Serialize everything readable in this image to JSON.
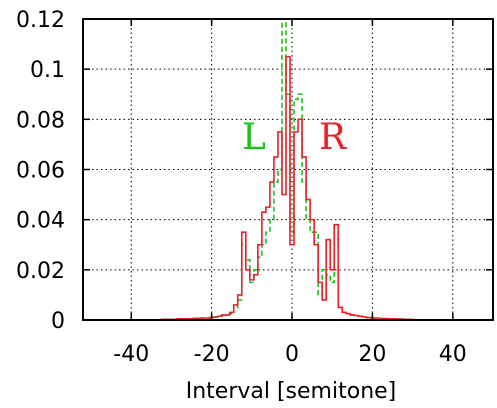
{
  "chart_data": {
    "type": "line",
    "title": "",
    "xlabel": "Interval [semitone]",
    "ylabel": "",
    "xlim": [
      -52,
      50
    ],
    "ylim": [
      0,
      0.12
    ],
    "xticks": [
      -40,
      -20,
      0,
      20,
      40
    ],
    "xtick_labels": [
      "-40",
      "-20",
      "0",
      "20",
      "40"
    ],
    "yticks": [
      0,
      0.02,
      0.04,
      0.06,
      0.08,
      0.1,
      0.12
    ],
    "ytick_labels": [
      "0",
      "0.02",
      "0.04",
      "0.06",
      "0.08",
      "0.1",
      "0.12"
    ],
    "grid": true,
    "series": [
      {
        "name": "L",
        "color": "#1ec21e",
        "dash": "dashed",
        "x": [
          -32,
          -30,
          -28,
          -26,
          -24,
          -22,
          -20,
          -19,
          -18,
          -17,
          -16,
          -15,
          -14,
          -13,
          -12,
          -11,
          -10,
          -9,
          -8,
          -7,
          -6,
          -5,
          -4,
          -3,
          -2,
          -1,
          0,
          1,
          2,
          3,
          4,
          5,
          6,
          7,
          8,
          9,
          10,
          11,
          12,
          13,
          14,
          15,
          16,
          17,
          18,
          19,
          20,
          22,
          24,
          26,
          28,
          30
        ],
        "y": [
          0.0003,
          0.0003,
          0.0005,
          0.0005,
          0.0007,
          0.0008,
          0.001,
          0.0012,
          0.0015,
          0.0018,
          0.002,
          0.0025,
          0.005,
          0.008,
          0.03,
          0.024,
          0.015,
          0.02,
          0.025,
          0.03,
          0.035,
          0.04,
          0.055,
          0.06,
          0.12,
          0.09,
          0.035,
          0.088,
          0.09,
          0.055,
          0.04,
          0.035,
          0.035,
          0.01,
          0.02,
          0.018,
          0.015,
          0.032,
          0.005,
          0.003,
          0.0025,
          0.002,
          0.0018,
          0.0015,
          0.0012,
          0.001,
          0.0008,
          0.0006,
          0.0005,
          0.0004,
          0.0003,
          0.0002
        ]
      },
      {
        "name": "R",
        "color": "#e8202a",
        "dash": "solid",
        "x": [
          -32,
          -30,
          -28,
          -26,
          -24,
          -22,
          -20,
          -19,
          -18,
          -17,
          -16,
          -15,
          -14,
          -13,
          -12,
          -11,
          -10,
          -9,
          -8,
          -7,
          -6,
          -5,
          -4,
          -3,
          -2,
          -1,
          0,
          1,
          2,
          3,
          4,
          5,
          6,
          7,
          8,
          9,
          10,
          11,
          12,
          13,
          14,
          15,
          16,
          17,
          18,
          19,
          20,
          22,
          24,
          26,
          28,
          30
        ],
        "y": [
          0.0003,
          0.0003,
          0.0005,
          0.0005,
          0.0007,
          0.0008,
          0.001,
          0.0012,
          0.0015,
          0.002,
          0.002,
          0.003,
          0.006,
          0.01,
          0.035,
          0.02,
          0.016,
          0.018,
          0.03,
          0.043,
          0.045,
          0.055,
          0.065,
          0.075,
          0.05,
          0.105,
          0.03,
          0.075,
          0.08,
          0.065,
          0.048,
          0.04,
          0.03,
          0.015,
          0.008,
          0.032,
          0.02,
          0.038,
          0.005,
          0.003,
          0.0025,
          0.002,
          0.0018,
          0.0015,
          0.0012,
          0.001,
          0.0008,
          0.0006,
          0.0005,
          0.0004,
          0.0003,
          0.0002
        ]
      }
    ]
  }
}
